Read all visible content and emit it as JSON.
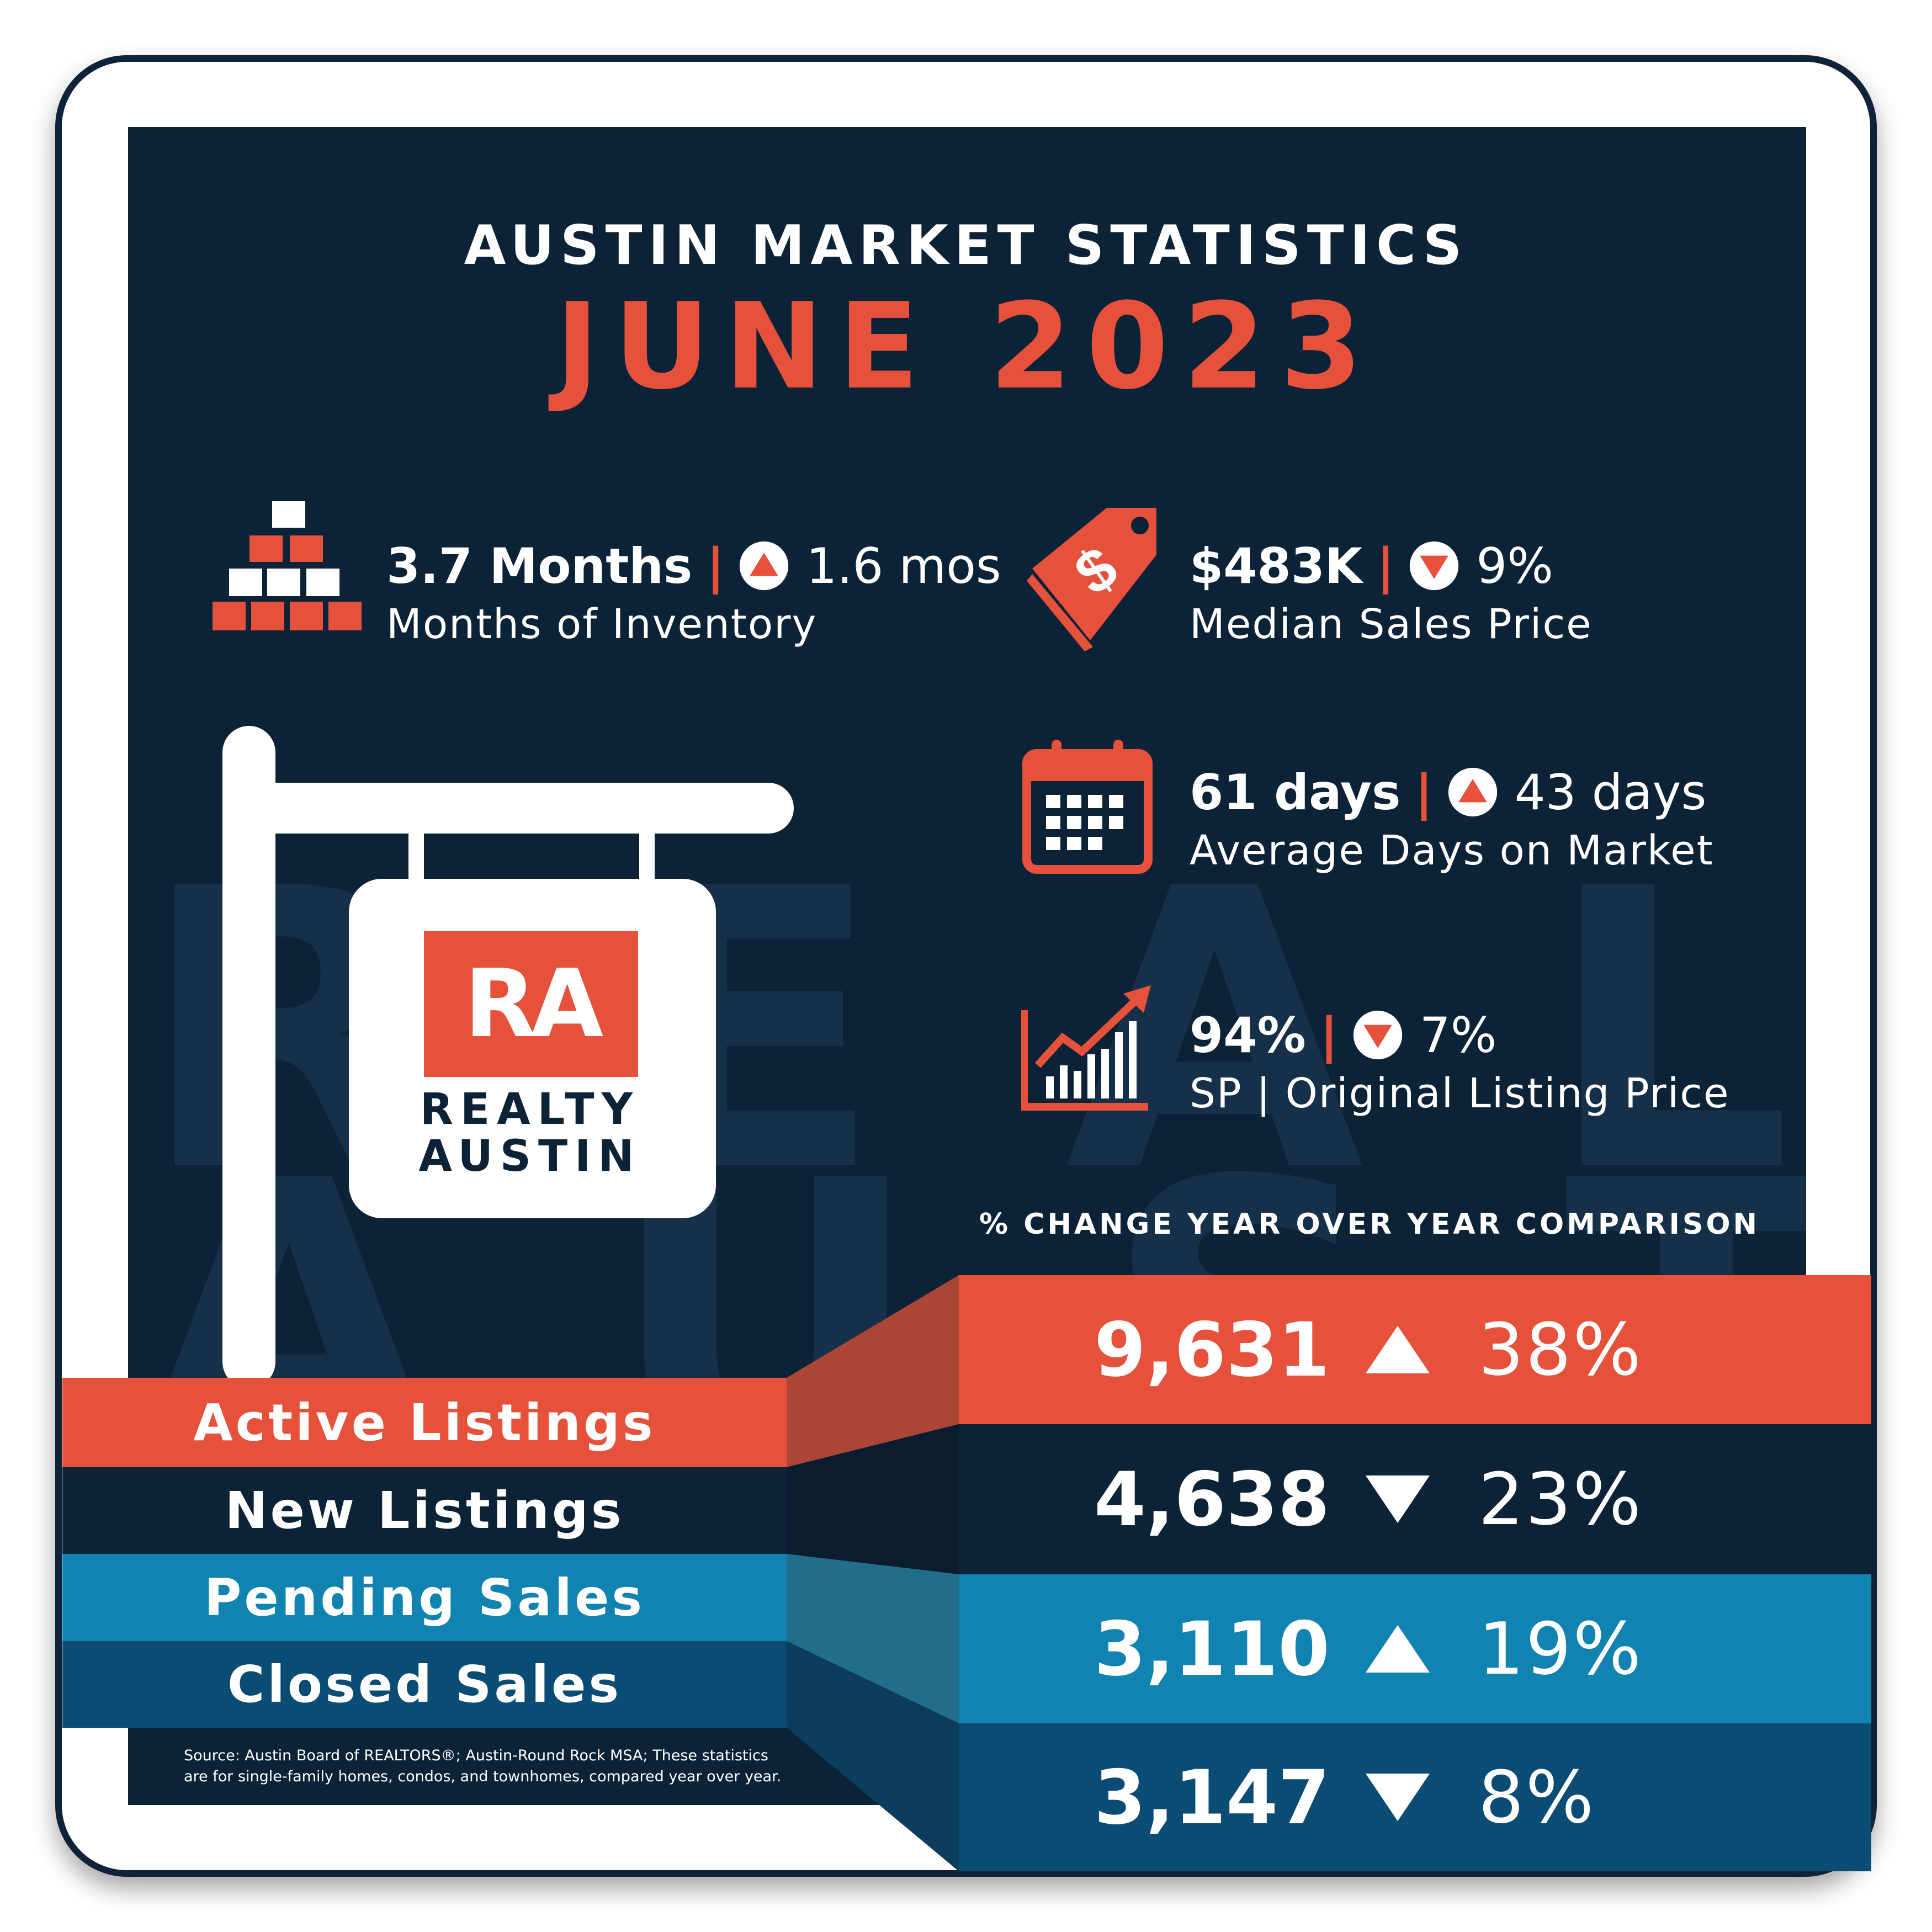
{
  "header": {
    "title": "AUSTIN MARKET STATISTICS",
    "period": "JUNE 2023"
  },
  "watermark": {
    "line1": "REALTY",
    "line2": "AUSTIN"
  },
  "stats": [
    {
      "value": "3.7 Months",
      "direction": "up",
      "change": "1.6 mos",
      "label": "Months of Inventory",
      "icon": "boxes-icon"
    },
    {
      "value": "$483K",
      "direction": "down",
      "change": "9%",
      "label": "Median Sales Price",
      "icon": "price-tag-icon"
    },
    {
      "value": "61 days",
      "direction": "up",
      "change": "43 days",
      "label": "Average Days on Market",
      "icon": "calendar-icon"
    },
    {
      "value": "94%",
      "direction": "down",
      "change": "7%",
      "label": "SP | Original Listing Price",
      "icon": "growth-chart-icon"
    }
  ],
  "legend": "% CHANGE YEAR OVER YEAR COMPARISON",
  "listings": [
    {
      "label": "Active Listings",
      "value": "9,631",
      "direction": "up",
      "change": "38%"
    },
    {
      "label": "New Listings",
      "value": "4,638",
      "direction": "down",
      "change": "23%"
    },
    {
      "label": "Pending Sales",
      "value": "3,110",
      "direction": "up",
      "change": "19%"
    },
    {
      "label": "Closed Sales",
      "value": "3,147",
      "direction": "down",
      "change": "8%"
    }
  ],
  "sign": {
    "logo": "RA",
    "brand_line1": "REALTY",
    "brand_line2": "AUSTIN"
  },
  "source": {
    "line1": "Source: Austin Board of REALTORS®; Austin-Round Rock MSA; These statistics",
    "line2": "are for single-family homes, condos, and townhomes, compared year over year."
  },
  "colors": {
    "navy": "#0c2237",
    "red": "#e5513b",
    "blue": "#1083b0",
    "dark_blue": "#0b4c74",
    "white": "#ffffff"
  }
}
